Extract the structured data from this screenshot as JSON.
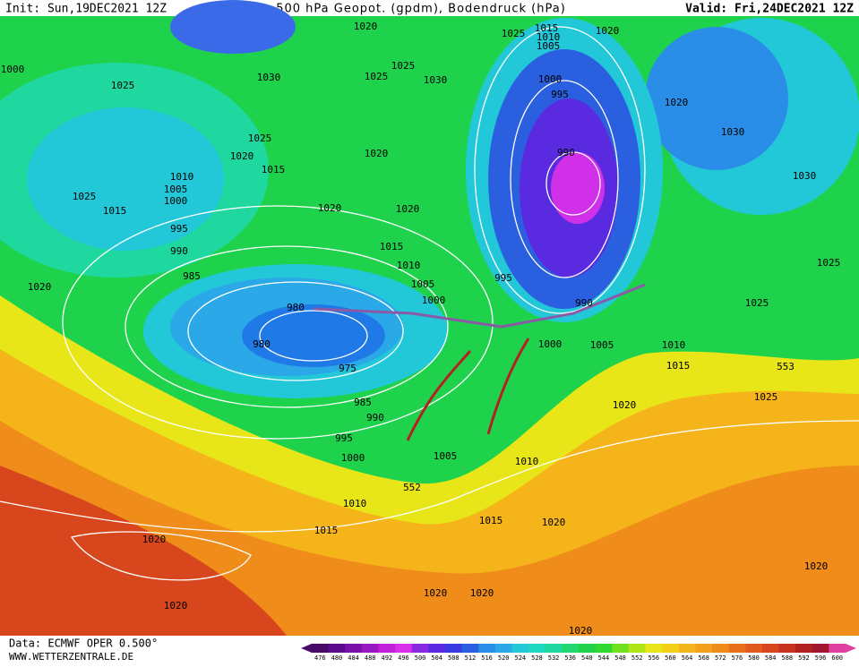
{
  "header": {
    "init": "Init: Sun,19DEC2021 12Z",
    "title": "500 hPa Geopot. (gpdm), Bodendruck (hPa)",
    "valid": "Valid: Fri,24DEC2021 12Z"
  },
  "map": {
    "labels": [
      1020,
      1025,
      1015,
      1010,
      1005,
      1020,
      1000,
      1030,
      1025,
      1025,
      1030,
      1025,
      1000,
      995,
      1020,
      1030,
      1025,
      1020,
      1020,
      990,
      1015,
      1030,
      1010,
      1005,
      1000,
      1025,
      1015,
      1020,
      1020,
      995,
      1015,
      990,
      1010,
      1025,
      995,
      985,
      1005,
      1020,
      1000,
      990,
      1025,
      980,
      1000,
      1005,
      1010,
      980,
      975,
      1015,
      553,
      1025,
      985,
      1020,
      990,
      995,
      1000,
      1005,
      1010,
      552,
      1010,
      1015,
      1020,
      1015,
      1020,
      1020,
      1020,
      1020,
      1020,
      1020
    ]
  },
  "legend": {
    "ticks": [
      476,
      480,
      484,
      488,
      492,
      496,
      500,
      504,
      508,
      512,
      516,
      520,
      524,
      528,
      532,
      536,
      540,
      544,
      548,
      552,
      556,
      560,
      564,
      568,
      572,
      576,
      580,
      584,
      588,
      592,
      596,
      600
    ],
    "colors": [
      "#4a0a6a",
      "#5a0a8a",
      "#7a10a8",
      "#9a18c0",
      "#c020d8",
      "#d830e8",
      "#8a2ae0",
      "#5a2ae0",
      "#3a3ae0",
      "#2a5fe0",
      "#2a8ee8",
      "#2aa8e8",
      "#22c8d8",
      "#1fd8c0",
      "#1fd8a0",
      "#1fd870",
      "#1fd24c",
      "#30d830",
      "#70e020",
      "#b0e618",
      "#e8e619",
      "#f5d01a",
      "#f5b41a",
      "#f5a01a",
      "#f08c1a",
      "#e8701c",
      "#e05a1c",
      "#d8461e",
      "#c8321e",
      "#b02020",
      "#a01830",
      "#e040a0"
    ]
  },
  "footer": {
    "source": "Data: ECMWF OPER 0.500°",
    "website": "WWW.WETTERZENTRALE.DE"
  }
}
